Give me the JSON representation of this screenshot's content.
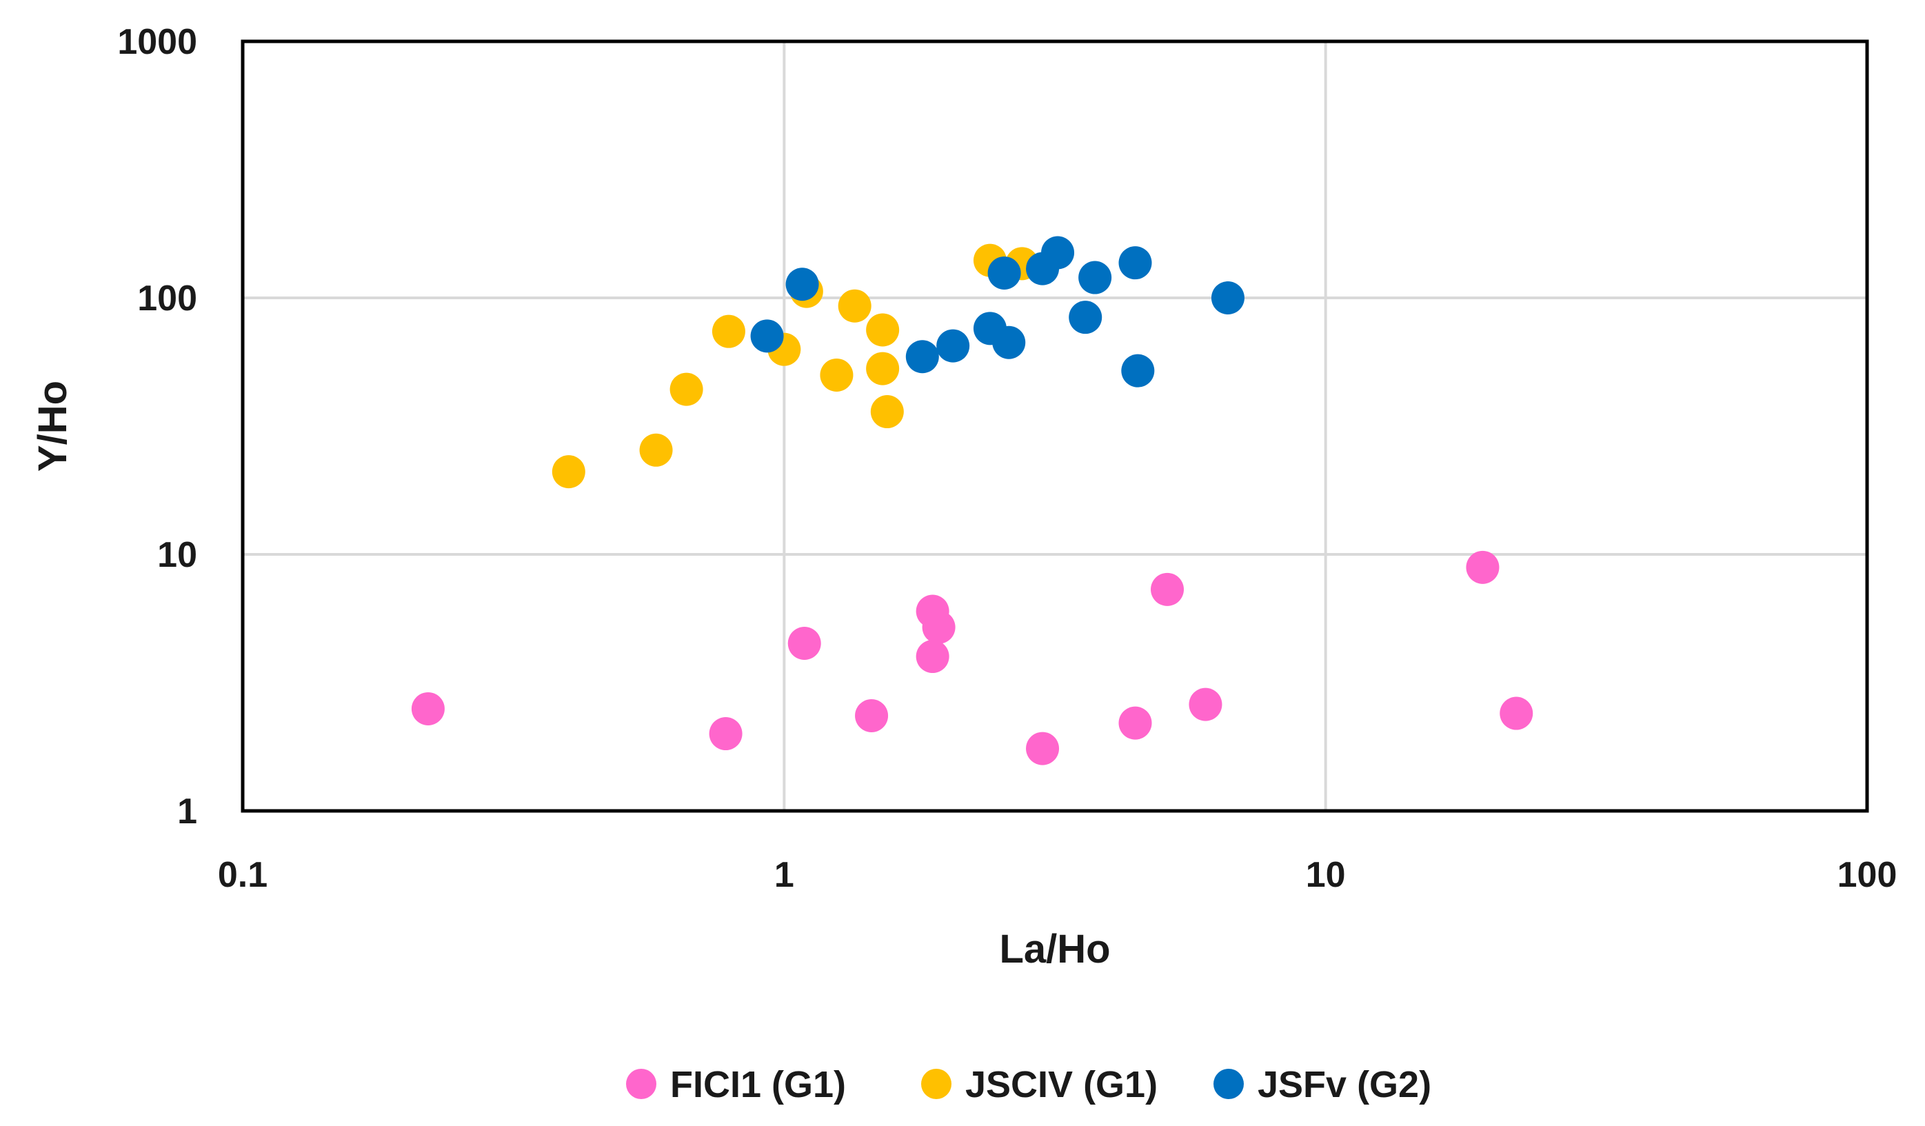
{
  "chart_data": {
    "type": "scatter",
    "title": "",
    "xlabel": "La/Ho",
    "ylabel": "Y/Ho",
    "xscale": "log",
    "yscale": "log",
    "xlim": [
      0.1,
      100
    ],
    "ylim": [
      1,
      1000
    ],
    "grid": true,
    "legend_position": "bottom",
    "x_tick_labels": [
      "0.1",
      "1",
      "10",
      "100"
    ],
    "y_tick_labels": [
      "1",
      "10",
      "100",
      "1000"
    ],
    "x_tick_values": [
      0.1,
      1,
      10,
      100
    ],
    "y_tick_values": [
      1,
      10,
      100,
      1000
    ],
    "series": [
      {
        "name": "FICI1 (G1)",
        "color": "#ff66cc",
        "points": [
          {
            "x": 0.22,
            "y": 2.5
          },
          {
            "x": 0.78,
            "y": 2.0
          },
          {
            "x": 1.09,
            "y": 4.5
          },
          {
            "x": 1.45,
            "y": 2.35
          },
          {
            "x": 1.88,
            "y": 6.0
          },
          {
            "x": 1.93,
            "y": 5.2
          },
          {
            "x": 1.88,
            "y": 4.0
          },
          {
            "x": 3.0,
            "y": 1.75
          },
          {
            "x": 4.45,
            "y": 2.2
          },
          {
            "x": 5.1,
            "y": 7.3
          },
          {
            "x": 6.0,
            "y": 2.6
          },
          {
            "x": 19.5,
            "y": 8.9
          },
          {
            "x": 22.5,
            "y": 2.4
          }
        ]
      },
      {
        "name": "JSCIV (G1)",
        "color": "#ffc000",
        "points": [
          {
            "x": 0.4,
            "y": 21
          },
          {
            "x": 0.58,
            "y": 25.5
          },
          {
            "x": 0.66,
            "y": 44
          },
          {
            "x": 0.79,
            "y": 74
          },
          {
            "x": 1.0,
            "y": 63
          },
          {
            "x": 1.1,
            "y": 106
          },
          {
            "x": 1.25,
            "y": 50
          },
          {
            "x": 1.35,
            "y": 93
          },
          {
            "x": 1.52,
            "y": 75
          },
          {
            "x": 1.52,
            "y": 53
          },
          {
            "x": 1.55,
            "y": 36
          },
          {
            "x": 2.4,
            "y": 140
          },
          {
            "x": 2.75,
            "y": 136
          }
        ]
      },
      {
        "name": "JSFv (G2)",
        "color": "#0070c0",
        "points": [
          {
            "x": 0.93,
            "y": 71
          },
          {
            "x": 1.08,
            "y": 113
          },
          {
            "x": 1.8,
            "y": 59
          },
          {
            "x": 2.05,
            "y": 65
          },
          {
            "x": 2.4,
            "y": 76
          },
          {
            "x": 2.6,
            "y": 67
          },
          {
            "x": 2.55,
            "y": 125
          },
          {
            "x": 3.0,
            "y": 130
          },
          {
            "x": 3.2,
            "y": 150
          },
          {
            "x": 3.6,
            "y": 84
          },
          {
            "x": 3.75,
            "y": 120
          },
          {
            "x": 4.45,
            "y": 137
          },
          {
            "x": 4.5,
            "y": 52
          },
          {
            "x": 6.6,
            "y": 100
          }
        ]
      }
    ]
  }
}
